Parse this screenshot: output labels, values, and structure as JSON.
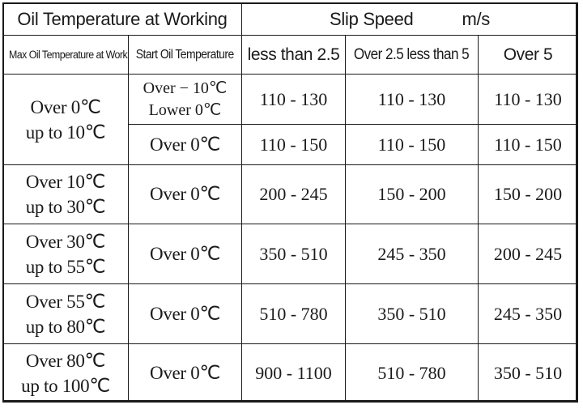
{
  "header": {
    "oil_temp_at_working": "Oil Temperature at Working",
    "slip_speed": "Slip Speed",
    "slip_unit": "m/s",
    "max_oil_temp": "Max Oil Temperature at Working",
    "start_oil_temp": "Start Oil Temperature",
    "col_less_2_5": "less than 2.5",
    "col_2_5_to_5": "Over 2.5 less than 5",
    "col_over_5": "Over 5"
  },
  "rows": [
    {
      "max_line1": "Over 0℃",
      "max_line2": "up to 10℃",
      "sub": [
        {
          "start_line1": "Over − 10℃",
          "start_line2": "Lower 0℃",
          "v1": "110 - 130",
          "v2": "110 - 130",
          "v3": "110 - 130"
        },
        {
          "start_line1": "Over 0℃",
          "v1": "110 - 150",
          "v2": "110 - 150",
          "v3": "110 - 150"
        }
      ]
    },
    {
      "max_line1": "Over 10℃",
      "max_line2": "up to 30℃",
      "start": "Over 0℃",
      "v1": "200 - 245",
      "v2": "150 - 200",
      "v3": "150 - 200"
    },
    {
      "max_line1": "Over 30℃",
      "max_line2": "up to 55℃",
      "start": "Over 0℃",
      "v1": "350 - 510",
      "v2": "245 - 350",
      "v3": "200 - 245"
    },
    {
      "max_line1": "Over 55℃",
      "max_line2": "up to 80℃",
      "start": "Over 0℃",
      "v1": "510 - 780",
      "v2": "350 - 510",
      "v3": "245 - 350"
    },
    {
      "max_line1": "Over 80℃",
      "max_line2": "up to 100℃",
      "start": "Over 0℃",
      "v1": "900 - 1100",
      "v2": "510 - 780",
      "v3": "350 - 510"
    }
  ]
}
